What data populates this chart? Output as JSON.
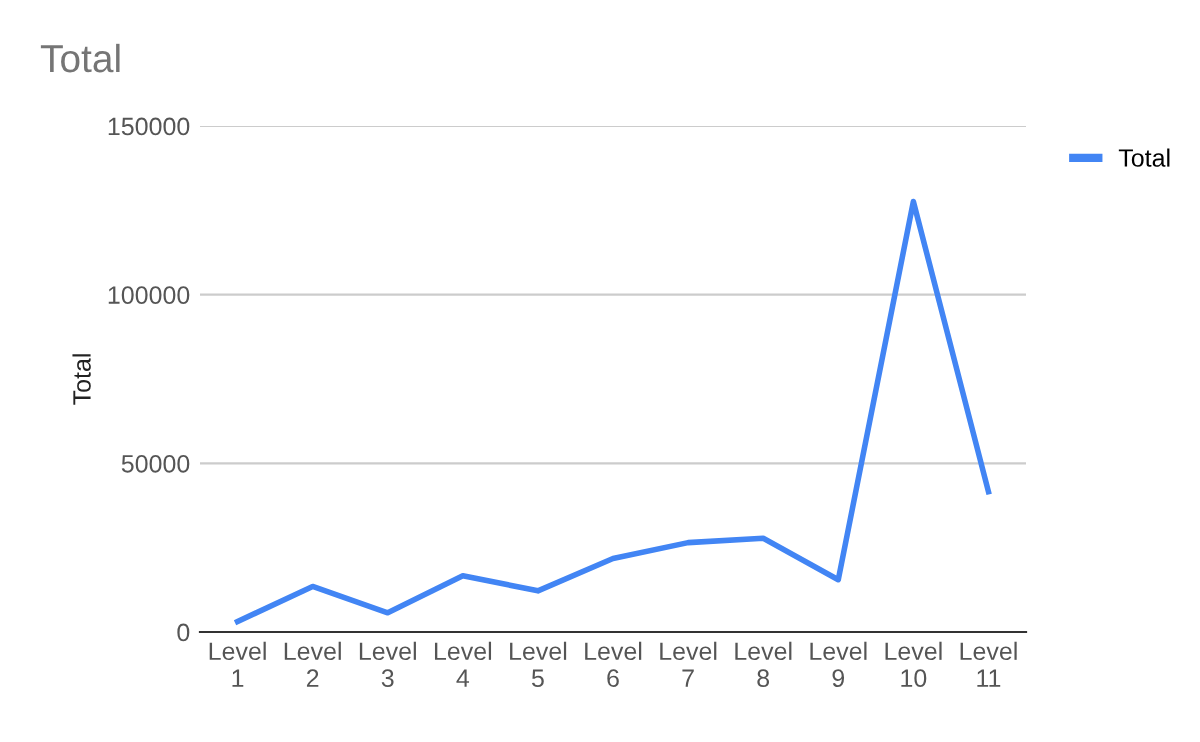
{
  "chart_data": {
    "type": "line",
    "title": "Total",
    "ylabel": "Total",
    "categories": [
      "Level 1",
      "Level 2",
      "Level 3",
      "Level 4",
      "Level 5",
      "Level 6",
      "Level 7",
      "Level 8",
      "Level 9",
      "Level 10",
      "Level 11"
    ],
    "series": [
      {
        "name": "Total",
        "color": "#4285f4",
        "values": [
          3100,
          13500,
          5700,
          16700,
          12200,
          21800,
          26500,
          27800,
          15500,
          127600,
          41600
        ]
      }
    ],
    "ylim": [
      0,
      150000
    ],
    "yticks": [
      0,
      50000,
      100000,
      150000
    ],
    "grid": "y",
    "legend": "top right"
  }
}
